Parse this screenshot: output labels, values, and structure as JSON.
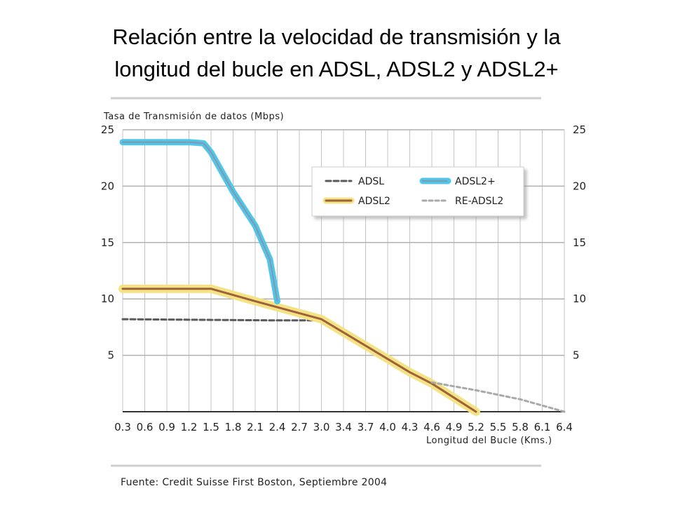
{
  "slide": {
    "title_line1": "Relación entre la velocidad de transmisión y la",
    "title_line2": "longitud del bucle en ADSL, ADSL2 y ADSL2+"
  },
  "chart_data": {
    "type": "line",
    "title": "Relación entre la velocidad de transmisión y la longitud del bucle en ADSL, ADSL2 y ADSL2+",
    "ylabel": "Tasa de Transmisión de datos (Mbps)",
    "xlabel": "Longitud del Bucle (Kms.)",
    "source": "Fuente: Credit Suisse First Boston, Septiembre 2004",
    "x_ticks": [
      "0.3",
      "0.6",
      "0.9",
      "1.2",
      "1.5",
      "1.8",
      "2.1",
      "2.4",
      "2.7",
      "3.0",
      "3.4",
      "3.7",
      "4.0",
      "4.3",
      "4.6",
      "4.9",
      "5.2",
      "5.5",
      "5.8",
      "6.1",
      "6.4"
    ],
    "y_ticks": [
      5,
      10,
      15,
      20,
      25
    ],
    "ylim": [
      0,
      25
    ],
    "grid": true,
    "legend_position": "top-right",
    "series": [
      {
        "name": "ADSL",
        "style": "dashed",
        "color": "#555555",
        "points": [
          [
            0.3,
            8.2
          ],
          [
            2.4,
            8.1
          ],
          [
            3.0,
            8.1
          ]
        ]
      },
      {
        "name": "ADSL2+",
        "style": "dotted-thick",
        "color": "#4fc6ea",
        "points": [
          [
            0.3,
            23.9
          ],
          [
            1.2,
            23.9
          ],
          [
            1.4,
            23.8
          ],
          [
            1.5,
            23.0
          ],
          [
            1.8,
            19.5
          ],
          [
            2.1,
            16.5
          ],
          [
            2.3,
            13.5
          ],
          [
            2.4,
            9.8
          ]
        ]
      },
      {
        "name": "ADSL2",
        "style": "solid-highlight",
        "color": "#a0603a",
        "points": [
          [
            0.3,
            10.9
          ],
          [
            1.2,
            10.9
          ],
          [
            1.5,
            10.9
          ],
          [
            2.1,
            9.8
          ],
          [
            3.0,
            8.2
          ],
          [
            4.3,
            3.5
          ],
          [
            4.6,
            2.5
          ],
          [
            5.2,
            0.0
          ]
        ]
      },
      {
        "name": "RE-ADSL2",
        "style": "dashed-light",
        "color": "#999999",
        "points": [
          [
            4.6,
            2.6
          ],
          [
            5.2,
            1.9
          ],
          [
            5.8,
            1.1
          ],
          [
            6.4,
            0.0
          ]
        ]
      }
    ]
  }
}
